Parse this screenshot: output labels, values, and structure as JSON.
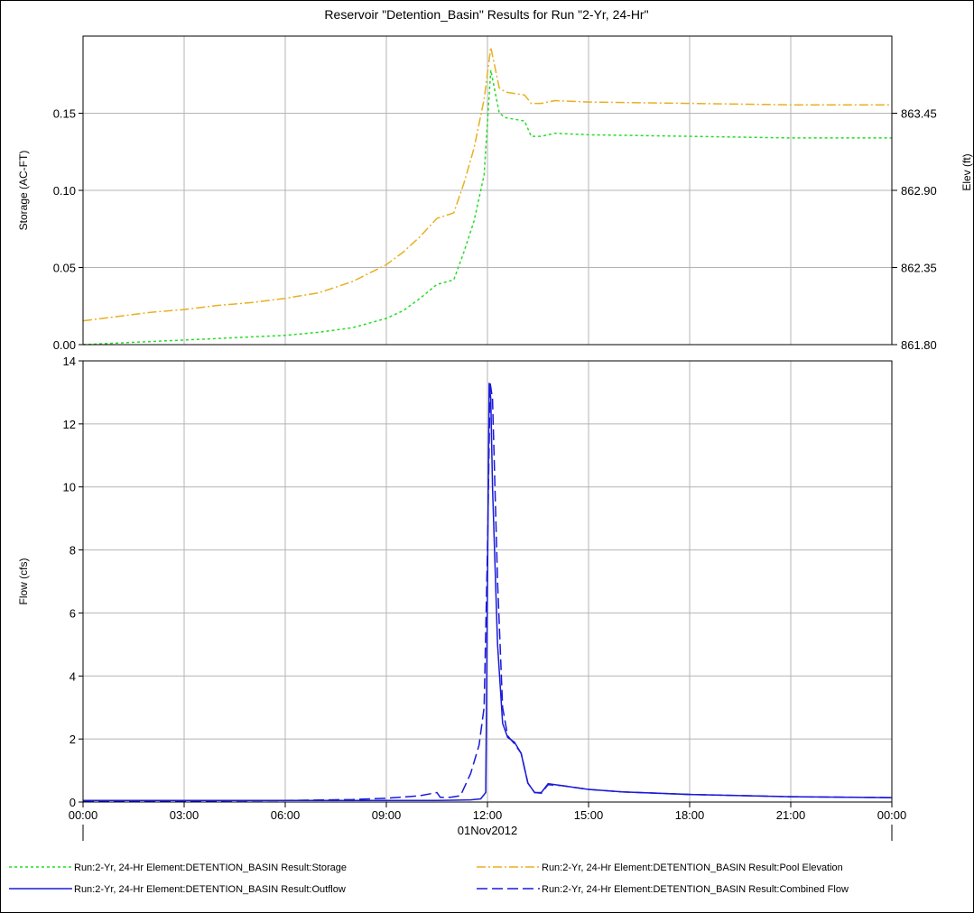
{
  "chart_data": [
    {
      "type": "line",
      "panel": "top",
      "title": "Reservoir \"Detention_Basin\" Results for Run \"2-Yr, 24-Hr\"",
      "ylabel": "Storage (AC-FT)",
      "y2label": "Elev (ft)",
      "ylim": [
        0,
        0.2
      ],
      "yticks": [
        0.0,
        0.05,
        0.1,
        0.15
      ],
      "yticklabels": [
        "0.00",
        "0.05",
        "0.10",
        "0.15"
      ],
      "y2lim": [
        861.8,
        864.0
      ],
      "y2ticks": [
        861.8,
        862.35,
        862.9,
        863.45
      ],
      "y2ticklabels": [
        "861.80",
        "862.35",
        "862.90",
        "863.45"
      ],
      "x_unit": "hours",
      "xlim": [
        0,
        24
      ],
      "grid": true,
      "series": [
        {
          "name": "Run:2-Yr, 24-Hr Element:DETENTION_BASIN Result:Storage",
          "color": "#22dd22",
          "axis": "left",
          "style": "dotted",
          "x": [
            0,
            1,
            2,
            3,
            4,
            5,
            6,
            7,
            8,
            9,
            9.5,
            10,
            10.5,
            11,
            11.3,
            11.6,
            11.9,
            12.1,
            12.35,
            12.55,
            13.1,
            13.3,
            13.6,
            14,
            15,
            18,
            21,
            24
          ],
          "values": [
            0.0,
            0.001,
            0.002,
            0.003,
            0.004,
            0.005,
            0.006,
            0.008,
            0.011,
            0.017,
            0.022,
            0.03,
            0.039,
            0.042,
            0.06,
            0.08,
            0.11,
            0.178,
            0.15,
            0.147,
            0.145,
            0.135,
            0.135,
            0.137,
            0.136,
            0.135,
            0.134,
            0.134
          ]
        },
        {
          "name": "Run:2-Yr, 24-Hr Element:DETENTION_BASIN Result:Pool Elevation",
          "color": "#e8b020",
          "axis": "right",
          "style": "dashdot",
          "x": [
            0,
            1,
            2,
            3,
            4,
            5,
            6,
            7,
            8,
            9,
            9.5,
            10,
            10.5,
            11,
            11.3,
            11.6,
            11.9,
            12.1,
            12.35,
            12.55,
            13.1,
            13.3,
            13.6,
            14,
            15,
            18,
            21,
            24
          ],
          "values": [
            861.97,
            862.0,
            862.03,
            862.05,
            862.08,
            862.1,
            862.13,
            862.17,
            862.25,
            862.37,
            862.46,
            862.57,
            862.7,
            862.74,
            862.95,
            863.2,
            863.55,
            863.92,
            863.63,
            863.6,
            863.58,
            863.52,
            863.52,
            863.54,
            863.53,
            863.52,
            863.51,
            863.51
          ]
        }
      ]
    },
    {
      "type": "line",
      "panel": "bottom",
      "ylabel": "Flow (cfs)",
      "ylim": [
        0,
        14
      ],
      "yticks": [
        0,
        2,
        4,
        6,
        8,
        10,
        12,
        14
      ],
      "yticklabels": [
        "0",
        "2",
        "4",
        "6",
        "8",
        "10",
        "12",
        "14"
      ],
      "x_unit": "hours",
      "xlim": [
        0,
        24
      ],
      "xticks": [
        0,
        3,
        6,
        9,
        12,
        15,
        18,
        21,
        24
      ],
      "xticklabels": [
        "00:00",
        "03:00",
        "06:00",
        "09:00",
        "12:00",
        "15:00",
        "18:00",
        "21:00",
        "00:00"
      ],
      "xlabel": "01Nov2012",
      "grid": true,
      "series": [
        {
          "name": "Run:2-Yr, 24-Hr Element:DETENTION_BASIN Result:Outflow",
          "color": "#1a1ad8",
          "style": "solid",
          "x": [
            0,
            3,
            6,
            9,
            10.5,
            11.5,
            11.8,
            11.95,
            12.05,
            12.1,
            12.15,
            12.3,
            12.45,
            12.6,
            12.8,
            13.0,
            13.2,
            13.4,
            13.6,
            13.8,
            14.2,
            15,
            16,
            18,
            21,
            24
          ],
          "values": [
            0.05,
            0.05,
            0.05,
            0.05,
            0.05,
            0.07,
            0.1,
            0.3,
            13.3,
            12.8,
            10.0,
            5.0,
            2.5,
            2.05,
            1.9,
            1.55,
            0.6,
            0.3,
            0.3,
            0.58,
            0.52,
            0.4,
            0.32,
            0.24,
            0.17,
            0.14
          ]
        },
        {
          "name": "Run:2-Yr, 24-Hr Element:DETENTION_BASIN Result:Combined Flow",
          "color": "#1a1ad8",
          "style": "dashed",
          "x": [
            0,
            3,
            6,
            8,
            9,
            10,
            10.5,
            10.6,
            10.9,
            11.2,
            11.5,
            11.75,
            11.9,
            12.0,
            12.08,
            12.15,
            12.3,
            12.45,
            12.6,
            12.8,
            13.0,
            13.2,
            13.4,
            13.6,
            13.8,
            14.2,
            15,
            16,
            18,
            21,
            24
          ],
          "values": [
            0.02,
            0.03,
            0.05,
            0.08,
            0.12,
            0.2,
            0.3,
            0.15,
            0.15,
            0.2,
            0.9,
            1.8,
            3.0,
            8.0,
            13.3,
            12.8,
            7.0,
            3.0,
            2.1,
            1.85,
            1.55,
            0.6,
            0.3,
            0.28,
            0.55,
            0.52,
            0.4,
            0.32,
            0.24,
            0.17,
            0.14
          ]
        }
      ]
    }
  ]
}
